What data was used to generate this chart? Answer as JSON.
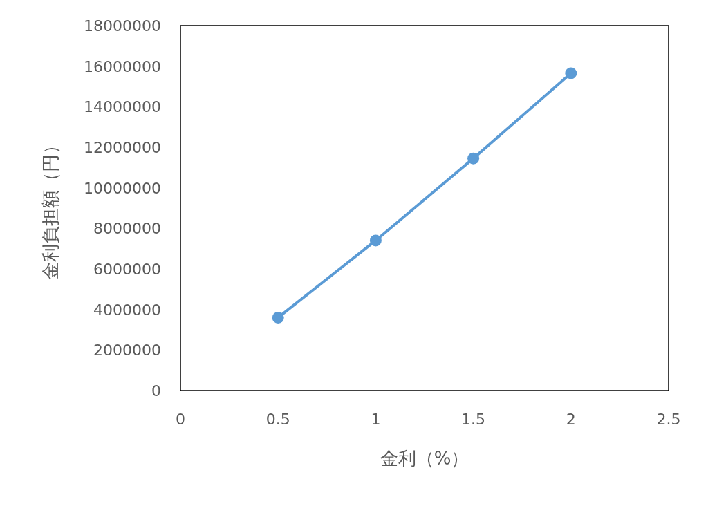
{
  "chart_data": {
    "type": "line",
    "xlabel": "金利（%）",
    "ylabel": "金利負担額（円）",
    "x": [
      0.5,
      1,
      1.5,
      2
    ],
    "series": [
      {
        "color": "#5b9bd5",
        "values": [
          3600000,
          7400000,
          11450000,
          15650000
        ]
      }
    ],
    "xlim": [
      0,
      2.5
    ],
    "xticks": [
      0,
      0.5,
      1,
      1.5,
      2,
      2.5
    ],
    "ylim": [
      0,
      18000000
    ],
    "yticks": [
      0,
      2000000,
      4000000,
      6000000,
      8000000,
      10000000,
      12000000,
      14000000,
      16000000,
      18000000
    ],
    "grid": false,
    "marker": "circle",
    "line_style": "solid"
  }
}
